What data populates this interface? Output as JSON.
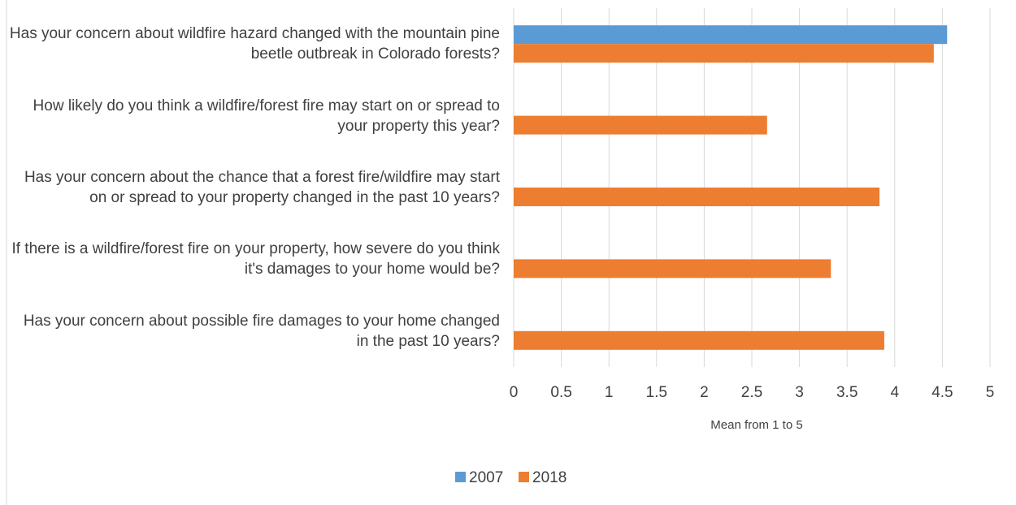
{
  "chart_data": {
    "type": "hbar",
    "categories": [
      "Has your concern about wildfire hazard changed with the mountain pine beetle outbreak in Colorado forests?",
      "How likely do you think a wildfire/forest fire may start on or spread to your property this year?",
      "Has your concern about the chance that a forest fire/wildfire may start on or spread to your property changed in the past 10 years?",
      "If there is a wildfire/forest fire on your property, how severe do you think it's damages to your home would be?",
      "Has your concern about possible fire damages to your home changed in the past 10 years?"
    ],
    "series": [
      {
        "name": "2007",
        "color": "#5b9bd5",
        "values": [
          4.55,
          null,
          null,
          null,
          null
        ]
      },
      {
        "name": "2018",
        "color": "#ed7d31",
        "values": [
          4.41,
          2.66,
          3.84,
          3.33,
          3.89
        ]
      }
    ],
    "xlabel": "Mean from 1 to 5",
    "xlim": [
      0,
      5
    ],
    "xticks": [
      0,
      0.5,
      1,
      1.5,
      2,
      2.5,
      3,
      3.5,
      4,
      4.5,
      5
    ],
    "grid": true,
    "legend": "bottom"
  }
}
